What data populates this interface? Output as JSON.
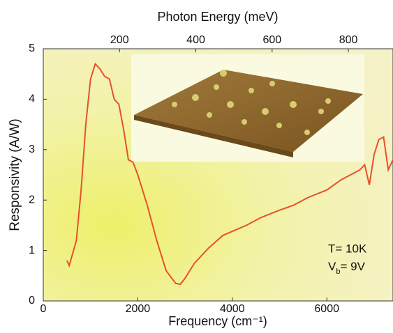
{
  "chart_data": {
    "type": "line",
    "xlabel": "Frequency (cm⁻¹)",
    "ylabel": "Responsivity (A/W)",
    "x2label": "Photon Energy (meV)",
    "x": [
      500,
      550,
      700,
      800,
      900,
      1000,
      1100,
      1200,
      1300,
      1400,
      1500,
      1600,
      1700,
      1800,
      1900,
      2000,
      2200,
      2400,
      2600,
      2800,
      2900,
      3000,
      3200,
      3500,
      3800,
      4000,
      4300,
      4600,
      5000,
      5300,
      5600,
      6000,
      6300,
      6500,
      6700,
      6800,
      6900,
      7000,
      7100,
      7200,
      7300,
      7400
    ],
    "values": [
      0.8,
      0.7,
      1.2,
      2.2,
      3.5,
      4.4,
      4.7,
      4.6,
      4.45,
      4.4,
      4.0,
      3.9,
      3.4,
      2.8,
      2.75,
      2.5,
      1.9,
      1.2,
      0.6,
      0.35,
      0.33,
      0.45,
      0.75,
      1.05,
      1.3,
      1.38,
      1.5,
      1.65,
      1.8,
      1.9,
      2.05,
      2.2,
      2.4,
      2.5,
      2.6,
      2.7,
      2.3,
      2.9,
      3.2,
      3.25,
      2.6,
      2.8
    ],
    "color": "#e8502a",
    "xlim": [
      0,
      7400
    ],
    "ylim": [
      0,
      5
    ],
    "x2lim": [
      0,
      917
    ],
    "xticks": [
      0,
      2000,
      4000,
      6000
    ],
    "yticks": [
      0,
      1,
      2,
      3,
      4,
      5
    ],
    "x2ticks": [
      200,
      400,
      600,
      800
    ],
    "annotations": [
      "T= 10K",
      "V",
      "b",
      "= 9V"
    ],
    "grid": false
  }
}
